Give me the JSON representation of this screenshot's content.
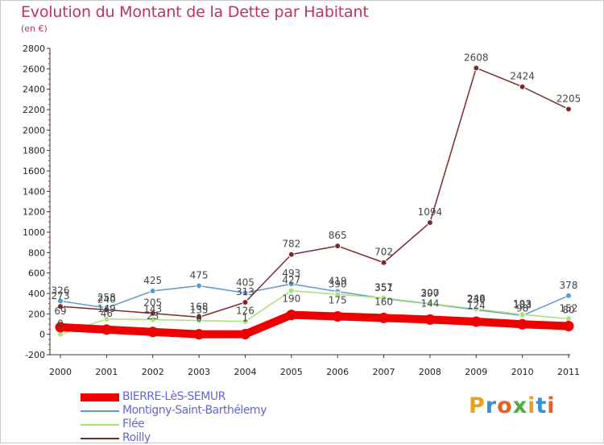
{
  "header": {
    "title": "Evolution du Montant de la Dette par Habitant",
    "subtitle": "(en €)"
  },
  "logo": {
    "text": "Proxiti",
    "colors": [
      "#e8a020",
      "#3a8fd8",
      "#e86020",
      "#4cae3c",
      "#e8a020",
      "#3a8fd8",
      "#e86020"
    ]
  },
  "chart_data": {
    "type": "line",
    "title": "Evolution du Montant de la Dette par Habitant",
    "subtitle": "(en €)",
    "x": [
      "2000",
      "2001",
      "2002",
      "2003",
      "2004",
      "2005",
      "2006",
      "2007",
      "2008",
      "2009",
      "2010",
      "2011"
    ],
    "ylim": [
      -200,
      2800
    ],
    "yticks": [
      -200,
      0,
      200,
      400,
      600,
      800,
      1000,
      1200,
      1400,
      1600,
      1800,
      2000,
      2200,
      2400,
      2600,
      2800
    ],
    "grid": false,
    "legend_position": "bottom-left",
    "series": [
      {
        "name": "BIERRE-LèS-SEMUR",
        "color": "#ee0000",
        "width": 10,
        "values": [
          69,
          46,
          23,
          0,
          1,
          190,
          175,
          160,
          144,
          124,
          98,
          80
        ],
        "labels": [
          "69",
          "46",
          "23",
          "0",
          "1",
          "190",
          "175",
          "160",
          "144",
          "124",
          "98",
          "80"
        ]
      },
      {
        "name": "Montigny-Saint-Barthélemy",
        "color": "#5b9bd5",
        "width": 1.5,
        "values": [
          326,
          258,
          425,
          475,
          405,
          493,
          419,
          351,
          297,
          239,
          183,
          378
        ],
        "labels": [
          "326",
          "258",
          "425",
          "475",
          "405",
          "493",
          "419",
          "351",
          "297",
          "239",
          "183",
          "378"
        ]
      },
      {
        "name": "Flée",
        "color": "#a8e07a",
        "width": 1.5,
        "values": [
          0,
          149,
          143,
          135,
          126,
          427,
          390,
          357,
          300,
          248,
          193,
          152
        ],
        "labels": [
          "0",
          "149",
          "143",
          "135",
          "126",
          "427",
          "390",
          "357",
          "300",
          "248",
          "193",
          "152"
        ]
      },
      {
        "name": "Roilly",
        "color": "#7a2a2a",
        "width": 1.5,
        "values": [
          273,
          240,
          205,
          168,
          313,
          782,
          865,
          702,
          1094,
          2608,
          2424,
          2205
        ],
        "labels": [
          "273",
          "240",
          "205",
          "168",
          "313",
          "782",
          "865",
          "702",
          "1094",
          "2608",
          "2424",
          "2205"
        ]
      }
    ]
  }
}
